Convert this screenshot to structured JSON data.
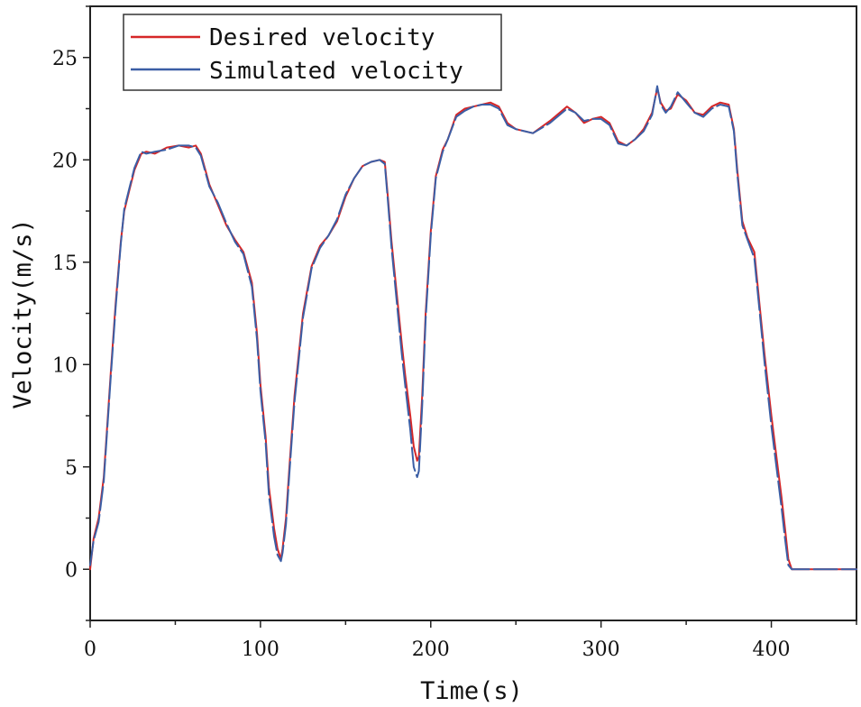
{
  "chart_data": {
    "type": "line",
    "title": "",
    "xlabel": "Time(s)",
    "ylabel": "Velocity(m/s)",
    "xlim": [
      0,
      450
    ],
    "ylim": [
      -2.5,
      27.5
    ],
    "xticks": [
      0,
      100,
      200,
      300,
      400
    ],
    "xtick_labels": [
      "0",
      "100",
      "200",
      "300",
      "400"
    ],
    "yticks": [
      0,
      5,
      10,
      15,
      20,
      25
    ],
    "ytick_labels": [
      "0",
      "5",
      "10",
      "15",
      "20",
      "25"
    ],
    "grid": false,
    "legend": {
      "placement": "top-left",
      "entries": [
        "Desired velocity",
        "Simulated velocity"
      ]
    },
    "series": [
      {
        "name": "Desired velocity",
        "color": "#d62728",
        "x": [
          0,
          2,
          5,
          8,
          10,
          12,
          15,
          18,
          20,
          23,
          26,
          30,
          33,
          38,
          45,
          52,
          58,
          62,
          65,
          70,
          75,
          80,
          85,
          90,
          95,
          98,
          100,
          103,
          105,
          108,
          110,
          112,
          113,
          115,
          117,
          120,
          125,
          130,
          135,
          140,
          145,
          150,
          155,
          160,
          165,
          170,
          173,
          175,
          177,
          180,
          183,
          185,
          188,
          190,
          192,
          193,
          195,
          197,
          200,
          203,
          207,
          210,
          215,
          220,
          225,
          230,
          235,
          240,
          245,
          250,
          260,
          270,
          280,
          285,
          290,
          295,
          300,
          305,
          310,
          315,
          320,
          325,
          330,
          333,
          335,
          338,
          341,
          345,
          350,
          355,
          360,
          365,
          370,
          375,
          378,
          380,
          383,
          386,
          390,
          393,
          396,
          400,
          403,
          406,
          408,
          410,
          412,
          420,
          430,
          440,
          450
        ],
        "y": [
          0,
          1.5,
          2.5,
          4.5,
          7,
          9.5,
          13,
          16,
          17.5,
          18.5,
          19.5,
          20.3,
          20.4,
          20.3,
          20.6,
          20.7,
          20.6,
          20.7,
          20.3,
          18.8,
          17.8,
          16.8,
          16.1,
          15.5,
          14.0,
          11.5,
          9.0,
          6.5,
          4.0,
          2.0,
          1.0,
          0.5,
          1.0,
          2.5,
          5.0,
          8.5,
          12.5,
          14.8,
          15.8,
          16.3,
          17.0,
          18.2,
          19.1,
          19.7,
          19.9,
          20.0,
          19.9,
          18.0,
          16.0,
          13.5,
          11.0,
          9.5,
          7.5,
          6.0,
          5.3,
          5.5,
          8.5,
          12.5,
          16.5,
          19.2,
          20.5,
          21.0,
          22.2,
          22.5,
          22.6,
          22.7,
          22.8,
          22.6,
          21.8,
          21.5,
          21.3,
          21.9,
          22.6,
          22.3,
          21.8,
          22.0,
          22.1,
          21.8,
          20.9,
          20.7,
          21.0,
          21.5,
          22.3,
          23.5,
          22.8,
          22.4,
          22.5,
          23.2,
          22.9,
          22.3,
          22.2,
          22.6,
          22.8,
          22.7,
          21.5,
          19.5,
          17.0,
          16.2,
          15.5,
          13.0,
          10.5,
          7.5,
          5.5,
          3.5,
          2.0,
          0.5,
          0,
          0,
          0,
          0,
          0
        ]
      },
      {
        "name": "Simulated velocity",
        "color": "#3b5ea5",
        "x": [
          0,
          2,
          5,
          8,
          10,
          12,
          15,
          18,
          20,
          23,
          26,
          30,
          33,
          38,
          45,
          52,
          58,
          62,
          65,
          70,
          75,
          80,
          85,
          90,
          95,
          98,
          100,
          103,
          105,
          108,
          110,
          112,
          113,
          115,
          117,
          120,
          125,
          130,
          135,
          140,
          145,
          150,
          155,
          160,
          165,
          170,
          173,
          175,
          177,
          180,
          183,
          185,
          188,
          190,
          192,
          193,
          195,
          197,
          200,
          203,
          207,
          210,
          215,
          220,
          225,
          230,
          235,
          240,
          245,
          250,
          260,
          270,
          280,
          285,
          290,
          295,
          300,
          305,
          310,
          315,
          320,
          325,
          330,
          333,
          335,
          338,
          341,
          345,
          350,
          355,
          360,
          365,
          370,
          375,
          378,
          380,
          383,
          386,
          390,
          393,
          396,
          400,
          403,
          406,
          408,
          410,
          412,
          420,
          430,
          440,
          450
        ],
        "y": [
          0.2,
          1.4,
          2.3,
          4.3,
          6.8,
          9.3,
          12.8,
          15.9,
          17.6,
          18.6,
          19.6,
          20.4,
          20.3,
          20.4,
          20.5,
          20.7,
          20.7,
          20.6,
          20.2,
          18.7,
          17.9,
          16.9,
          16.0,
          15.4,
          13.8,
          11.2,
          8.7,
          6.2,
          3.6,
          1.6,
          0.7,
          0.4,
          0.8,
          2.2,
          4.7,
          8.2,
          12.3,
          14.7,
          15.7,
          16.3,
          17.1,
          18.3,
          19.1,
          19.7,
          19.9,
          20.0,
          19.8,
          17.8,
          15.7,
          13.1,
          10.5,
          9.0,
          6.8,
          5.0,
          4.5,
          4.8,
          8.0,
          12.2,
          16.3,
          19.1,
          20.4,
          21.0,
          22.1,
          22.4,
          22.6,
          22.7,
          22.7,
          22.5,
          21.7,
          21.5,
          21.3,
          21.8,
          22.5,
          22.3,
          21.9,
          22.0,
          22.0,
          21.7,
          20.8,
          20.7,
          21.0,
          21.4,
          22.2,
          23.6,
          22.7,
          22.3,
          22.6,
          23.3,
          22.8,
          22.3,
          22.1,
          22.5,
          22.7,
          22.6,
          21.4,
          19.3,
          16.8,
          16.1,
          15.2,
          12.7,
          10.1,
          7.0,
          5.0,
          3.0,
          1.5,
          0.2,
          0,
          0,
          0,
          0,
          0
        ]
      }
    ]
  }
}
